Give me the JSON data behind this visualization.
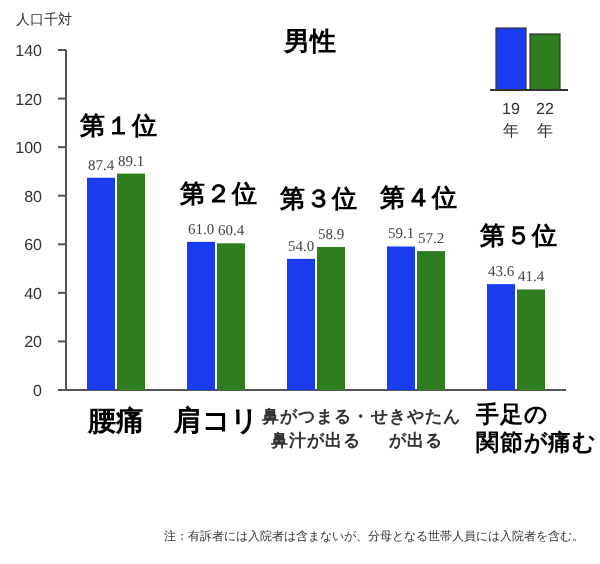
{
  "chart_data": {
    "type": "bar",
    "title": "男性",
    "ylabel": "人口千対",
    "categories": [
      "腰痛",
      "肩コリ",
      "鼻がつまる・鼻汁が出る",
      "せきやたんが出る",
      "手足の関節が痛む"
    ],
    "series": [
      {
        "name": "19年",
        "color": "#1a3cf0",
        "values": [
          87.4,
          61.0,
          54.0,
          59.1,
          43.6
        ],
        "value_labels": [
          "87.4",
          "61.0",
          "54.0",
          "59.1",
          "43.6"
        ]
      },
      {
        "name": "22年",
        "color": "#2e7d1e",
        "values": [
          89.1,
          60.4,
          58.9,
          57.2,
          41.4
        ],
        "value_labels": [
          "89.1",
          "60.4",
          "58.9",
          "57.2",
          "41.4"
        ]
      }
    ],
    "ylim": [
      0,
      140
    ],
    "yticks": [
      0,
      20,
      40,
      60,
      80,
      100,
      120,
      140
    ],
    "legend": "top right",
    "grid": false,
    "annotations": [
      {
        "text": "第１位",
        "x": "腰痛",
        "y": 89.1
      },
      {
        "text": "第２位",
        "x": "肩コリ",
        "y": 61.0
      },
      {
        "text": "第３位",
        "x": "鼻がつまる・鼻汁が出る",
        "y": 58.9
      },
      {
        "text": "第４位",
        "x": "せきやたんが出る",
        "y": 59.1
      },
      {
        "text": "第５位",
        "x": "手足の関節が痛む",
        "y": 43.6
      },
      "注：有訴者には入院者は含まないが、分母となる世帯人員には入院者を含む。"
    ]
  }
}
